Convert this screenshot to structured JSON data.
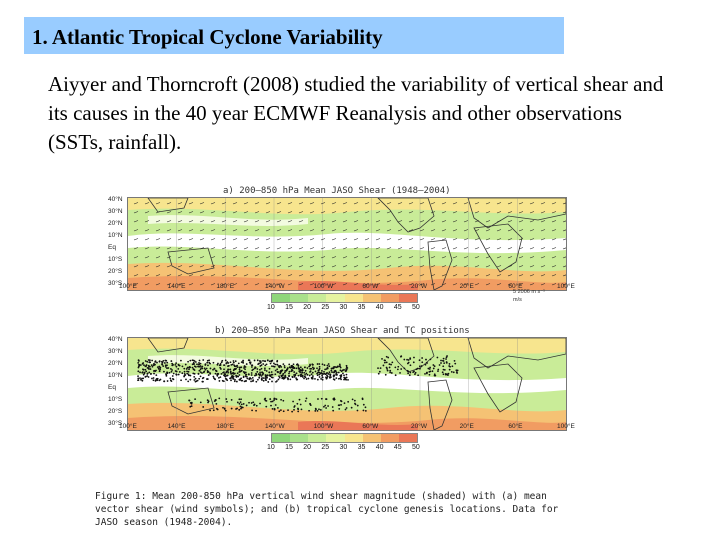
{
  "slide": {
    "title": "1. Atlantic Tropical Cyclone Variability",
    "body": "Aiyyer and Thorncroft (2008) studied the variability of vertical shear and its causes in the 40 year ECMWF Reanalysis and other observations (SSTs, rainfall)."
  },
  "figure": {
    "panel_a_title": "a) 200–850 hPa Mean JASO Shear (1948–2004)",
    "panel_b_title": "b) 200–850 hPa Mean JASO Shear and TC positions",
    "lat_labels": [
      "40°N",
      "30°N",
      "20°N",
      "10°N",
      "Eq",
      "10°S",
      "20°S",
      "30°S"
    ],
    "lon_labels": [
      "100°E",
      "140°E",
      "180°E",
      "140°W",
      "100°W",
      "60°W",
      "20°W",
      "20°E",
      "60°E",
      "100°E"
    ],
    "colorbar_labels": [
      "10",
      "15",
      "20",
      "25",
      "30",
      "35",
      "40",
      "45",
      "50"
    ],
    "colorbar_colors": [
      "#8fd67a",
      "#a9e08a",
      "#c9ec98",
      "#e6f3a0",
      "#f7e58e",
      "#f5c274",
      "#f19c62",
      "#ea7757"
    ],
    "vector_note": "5 2006 m s⁻¹",
    "unit_note": "m/s",
    "caption": "Figure 1: Mean 200-850 hPa vertical wind shear magnitude (shaded) with (a) mean vector shear (wind symbols); and (b) tropical cyclone genesis locations. Data for JASO season (1948-2004)."
  }
}
